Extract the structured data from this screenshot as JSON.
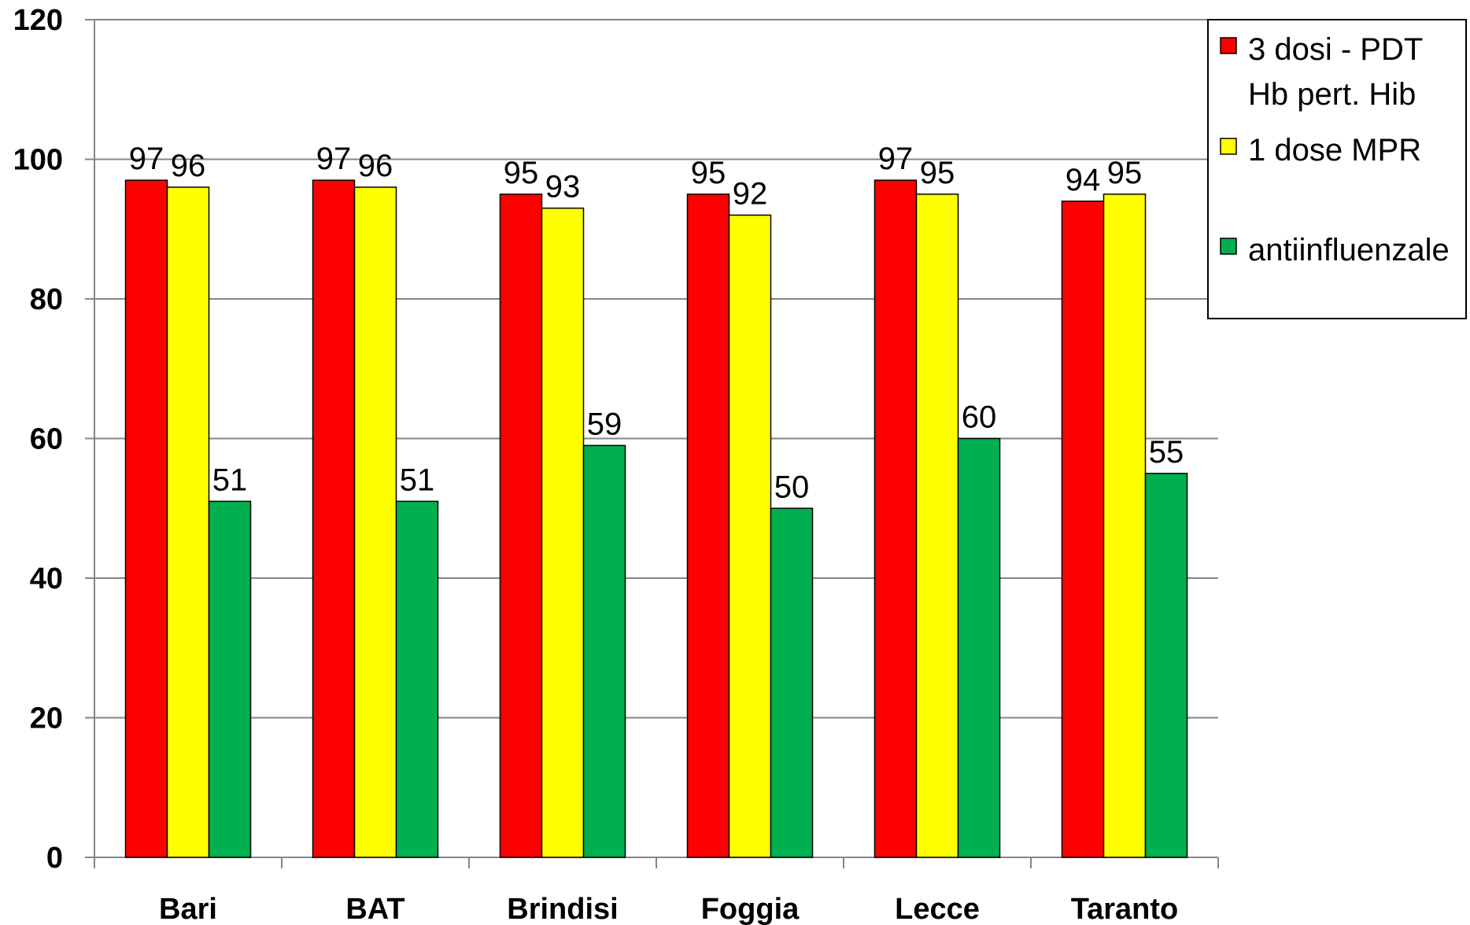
{
  "chart_data": {
    "type": "bar",
    "categories": [
      "Bari",
      "BAT",
      "Brindisi",
      "Foggia",
      "Lecce",
      "Taranto"
    ],
    "series": [
      {
        "name": "3 dosi - PDT Hb pert. Hib",
        "legend_lines": [
          "3 dosi - PDT",
          "Hb pert. Hib"
        ],
        "color": "#ff0000",
        "values": [
          97,
          97,
          95,
          95,
          97,
          94
        ]
      },
      {
        "name": "1 dose MPR",
        "legend_lines": [
          "1 dose MPR"
        ],
        "color": "#ffff00",
        "values": [
          96,
          96,
          93,
          92,
          95,
          95
        ]
      },
      {
        "name": "antiinfluenzale",
        "legend_lines": [
          "antiinfluenzale"
        ],
        "color": "#00b050",
        "values": [
          51,
          51,
          59,
          50,
          60,
          55
        ]
      }
    ],
    "ylim": [
      0,
      120
    ],
    "yticks": [
      0,
      20,
      40,
      60,
      80,
      100,
      120
    ],
    "grid": true,
    "legend_position": "top-right",
    "title": "",
    "xlabel": "",
    "ylabel": ""
  }
}
